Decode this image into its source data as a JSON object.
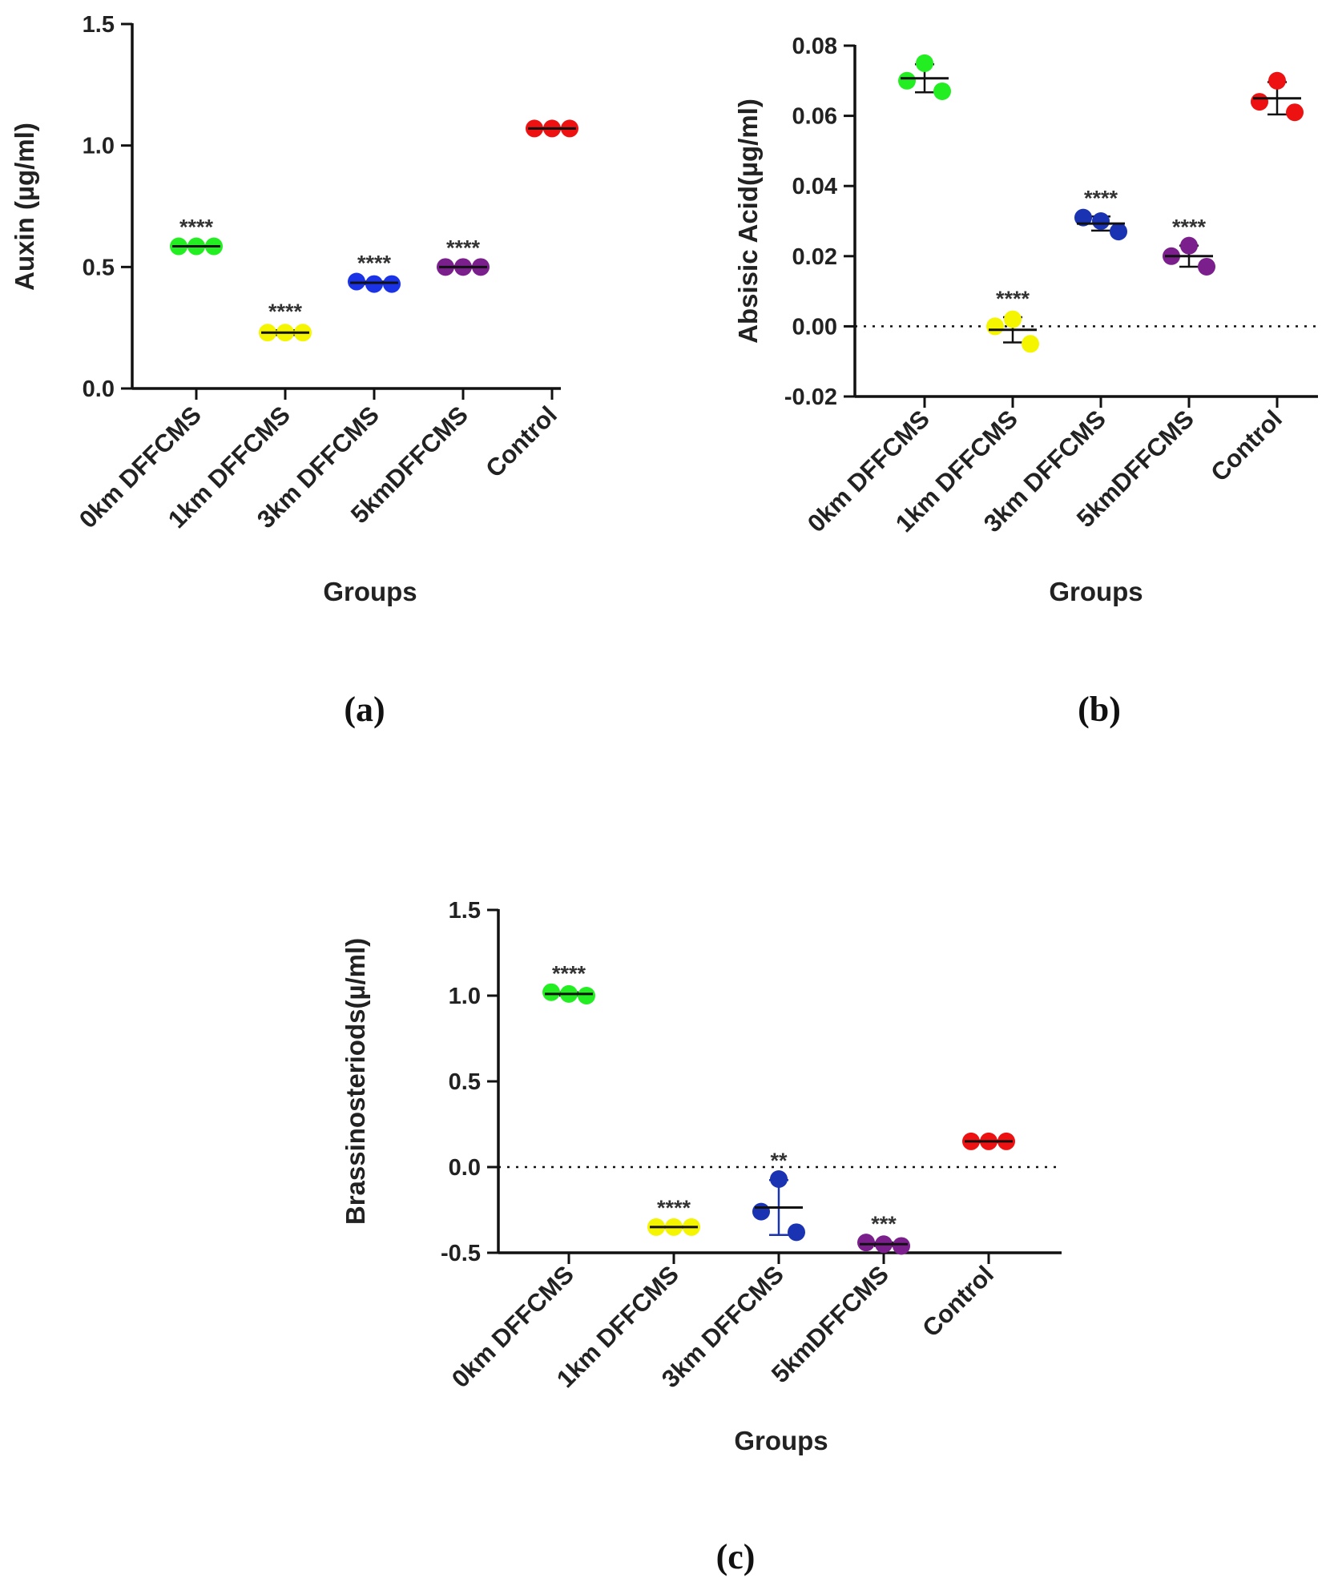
{
  "chart_data": [
    {
      "id": "a",
      "type": "scatter",
      "panel_label": "(a)",
      "xlabel": "Groups",
      "ylabel": "Auxin (µg/ml)",
      "ylim": [
        0,
        1.5
      ],
      "yticks": [
        0.0,
        0.5,
        1.0,
        1.5
      ],
      "ytick_labels": [
        "0.0",
        "0.5",
        "1.0",
        "1.5"
      ],
      "zero_line": false,
      "categories": [
        "0km DFFCMS",
        "1km DFFCMS",
        "3km DFFCMS",
        "5kmDFFCMS",
        "Control"
      ],
      "groups": [
        {
          "points": [
            0.585,
            0.585,
            0.585
          ],
          "mean": 0.585,
          "sd": 0.003,
          "significance": "****",
          "color": "#22ee22"
        },
        {
          "points": [
            0.23,
            0.23,
            0.23
          ],
          "mean": 0.23,
          "sd": 0.01,
          "significance": "****",
          "color": "#f5f500"
        },
        {
          "points": [
            0.44,
            0.43,
            0.43
          ],
          "mean": 0.435,
          "sd": 0.005,
          "significance": "****",
          "color": "#1a33e6"
        },
        {
          "points": [
            0.5,
            0.5,
            0.5
          ],
          "mean": 0.5,
          "sd": 0.003,
          "significance": "****",
          "color": "#7a1f8c"
        },
        {
          "points": [
            1.07,
            1.07,
            1.07
          ],
          "mean": 1.07,
          "sd": 0.003,
          "significance": "",
          "color": "#ee1111"
        }
      ]
    },
    {
      "id": "b",
      "type": "scatter",
      "panel_label": "(b)",
      "xlabel": "Groups",
      "ylabel": "Absisic Acid(µg/ml)",
      "ylim": [
        -0.02,
        0.08
      ],
      "yticks": [
        -0.02,
        0.0,
        0.02,
        0.04,
        0.06,
        0.08
      ],
      "ytick_labels": [
        "-0.02",
        "0.00",
        "0.02",
        "0.04",
        "0.06",
        "0.08"
      ],
      "zero_line": true,
      "categories": [
        "0km DFFCMS",
        "1km DFFCMS",
        "3km DFFCMS",
        "5kmDFFCMS",
        "Control"
      ],
      "groups": [
        {
          "points": [
            0.07,
            0.075,
            0.067
          ],
          "mean": 0.0707,
          "sd": 0.004,
          "significance": "",
          "color": "#22ee22"
        },
        {
          "points": [
            0.0,
            0.002,
            -0.005
          ],
          "mean": -0.001,
          "sd": 0.0036,
          "significance": "****",
          "color": "#f5f500"
        },
        {
          "points": [
            0.031,
            0.03,
            0.027
          ],
          "mean": 0.0293,
          "sd": 0.002,
          "significance": "****",
          "color": "#1a33b3"
        },
        {
          "points": [
            0.02,
            0.023,
            0.017
          ],
          "mean": 0.02,
          "sd": 0.003,
          "significance": "****",
          "color": "#7a1f8c"
        },
        {
          "points": [
            0.064,
            0.07,
            0.061
          ],
          "mean": 0.065,
          "sd": 0.0046,
          "significance": "",
          "color": "#ee1111"
        }
      ]
    },
    {
      "id": "c",
      "type": "scatter",
      "panel_label": "(c)",
      "xlabel": "Groups",
      "ylabel": "Brassinosteriods(µ/ml)",
      "ylim": [
        -0.5,
        1.5
      ],
      "yticks": [
        -0.5,
        0.0,
        0.5,
        1.0,
        1.5
      ],
      "ytick_labels": [
        "-0.5",
        "0.0",
        "0.5",
        "1.0",
        "1.5"
      ],
      "zero_line": true,
      "categories": [
        "0km DFFCMS",
        "1km DFFCMS",
        "3km DFFCMS",
        "5kmDFFCMS",
        "Control"
      ],
      "groups": [
        {
          "points": [
            1.02,
            1.01,
            1.0
          ],
          "mean": 1.01,
          "sd": 0.01,
          "significance": "****",
          "color": "#22ee22"
        },
        {
          "points": [
            -0.35,
            -0.35,
            -0.35
          ],
          "mean": -0.35,
          "sd": 0.005,
          "significance": "****",
          "color": "#f5f500"
        },
        {
          "points": [
            -0.26,
            -0.07,
            -0.38
          ],
          "mean": -0.236,
          "sd": 0.16,
          "significance": "**",
          "color": "#1a33b3"
        },
        {
          "points": [
            -0.44,
            -0.45,
            -0.46
          ],
          "mean": -0.45,
          "sd": 0.01,
          "significance": "***",
          "color": "#7a1f8c"
        },
        {
          "points": [
            0.15,
            0.15,
            0.15
          ],
          "mean": 0.15,
          "sd": 0.005,
          "significance": "",
          "color": "#ee1111"
        }
      ]
    }
  ]
}
